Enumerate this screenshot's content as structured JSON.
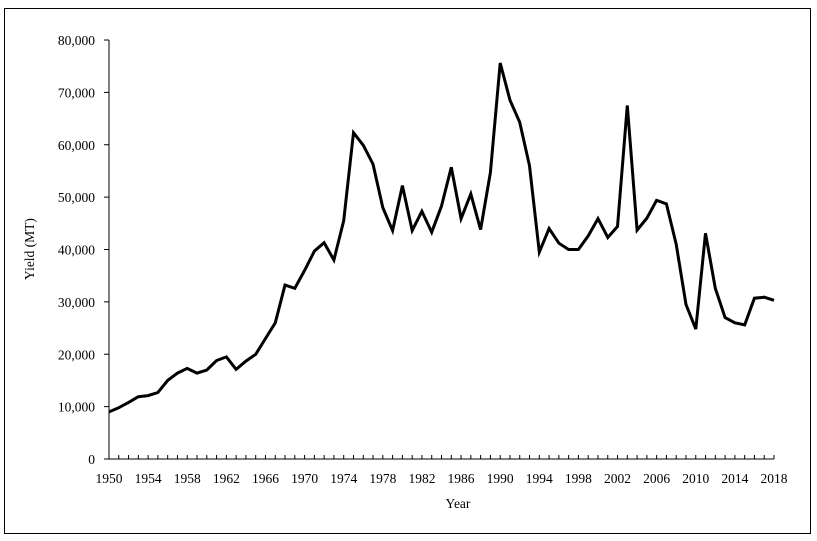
{
  "chart_data": {
    "type": "line",
    "title": "",
    "xlabel": "Year",
    "ylabel": "Yield  (MT)",
    "ylim": [
      0,
      80000
    ],
    "xlim": [
      1950,
      2018
    ],
    "grid": false,
    "legend": null,
    "y_ticks": [
      0,
      10000,
      20000,
      30000,
      40000,
      50000,
      60000,
      70000,
      80000
    ],
    "y_tick_labels": [
      "0",
      "10,000",
      "20,000",
      "30,000",
      "40,000",
      "50,000",
      "60,000",
      "70,000",
      "80,000"
    ],
    "x_tick_labels": [
      "1950",
      "1954",
      "1958",
      "1962",
      "1966",
      "1970",
      "1974",
      "1978",
      "1982",
      "1986",
      "1990",
      "1994",
      "1998",
      "2002",
      "2006",
      "2010",
      "2014",
      "2018"
    ],
    "series": [
      {
        "name": "Yield",
        "color": "#000000",
        "x": [
          1950,
          1951,
          1952,
          1953,
          1954,
          1955,
          1956,
          1957,
          1958,
          1959,
          1960,
          1961,
          1962,
          1963,
          1964,
          1965,
          1966,
          1967,
          1968,
          1969,
          1970,
          1971,
          1972,
          1973,
          1974,
          1975,
          1976,
          1977,
          1978,
          1979,
          1980,
          1981,
          1982,
          1983,
          1984,
          1985,
          1986,
          1987,
          1988,
          1989,
          1990,
          1991,
          1992,
          1993,
          1994,
          1995,
          1996,
          1997,
          1998,
          1999,
          2000,
          2001,
          2002,
          2003,
          2004,
          2005,
          2006,
          2007,
          2008,
          2009,
          2010,
          2011,
          2012,
          2013,
          2014,
          2015,
          2016,
          2017,
          2018
        ],
        "values": [
          9000,
          9800,
          10800,
          11900,
          12100,
          12700,
          15000,
          16400,
          17300,
          16400,
          17000,
          18800,
          19500,
          17100,
          18700,
          20000,
          23000,
          26000,
          33200,
          32600,
          36000,
          39700,
          41300,
          38000,
          45500,
          62300,
          59900,
          56300,
          48000,
          43600,
          52200,
          43600,
          47300,
          43300,
          48300,
          55700,
          45900,
          50600,
          43800,
          54700,
          75600,
          68500,
          64300,
          56000,
          39500,
          44000,
          41200,
          40000,
          40000,
          42600,
          45900,
          42300,
          44400,
          67500,
          43700,
          46000,
          49400,
          48700,
          41000,
          29500,
          24800,
          43100,
          32600,
          27000,
          26000,
          25600,
          30700,
          30900,
          30300
        ]
      }
    ]
  }
}
